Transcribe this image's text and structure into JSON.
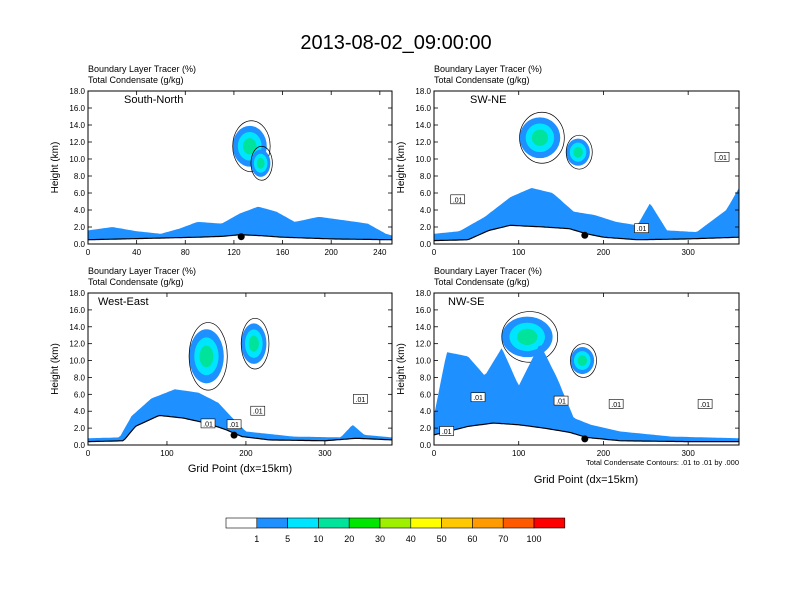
{
  "title": "2013-08-02_09:00:00",
  "tracer_label": "Boundary Layer Tracer    (%)",
  "condensate_label": "Total Condensate    (g/kg)",
  "ylabel": "Height (km)",
  "xlabel": "Grid Point (dx=15km)",
  "contour_note": "Total Condensate Contours: .01 to .01 by .000",
  "colorbar": {
    "colors": [
      "#ffffff",
      "#1e90ff",
      "#00e5ff",
      "#00e39a",
      "#00e600",
      "#9ef000",
      "#ffff00",
      "#ffc800",
      "#ff9a00",
      "#ff5a00",
      "#ff0000"
    ],
    "labels": [
      "1",
      "5",
      "10",
      "20",
      "30",
      "40",
      "50",
      "60",
      "70",
      "100"
    ]
  },
  "chart_data": [
    {
      "type": "heatmap",
      "name": "South-North",
      "xlim": [
        0,
        250
      ],
      "ylim": [
        0,
        18
      ],
      "xticks": [
        0,
        40,
        80,
        120,
        160,
        200,
        240
      ],
      "yticks": [
        0.0,
        2.0,
        4.0,
        6.0,
        8.0,
        10.0,
        12.0,
        14.0,
        16.0,
        18.0
      ],
      "terrain": [
        [
          0,
          0.5
        ],
        [
          30,
          0.6
        ],
        [
          60,
          0.7
        ],
        [
          90,
          0.8
        ],
        [
          110,
          0.9
        ],
        [
          125,
          1.1
        ],
        [
          140,
          1.0
        ],
        [
          160,
          0.8
        ],
        [
          200,
          0.6
        ],
        [
          250,
          0.5
        ]
      ],
      "tracer_top": [
        [
          0,
          1.6
        ],
        [
          20,
          2.0
        ],
        [
          40,
          1.5
        ],
        [
          60,
          1.2
        ],
        [
          75,
          1.8
        ],
        [
          90,
          2.6
        ],
        [
          110,
          2.4
        ],
        [
          125,
          3.6
        ],
        [
          140,
          4.4
        ],
        [
          155,
          3.8
        ],
        [
          170,
          2.6
        ],
        [
          190,
          3.2
        ],
        [
          210,
          2.8
        ],
        [
          230,
          2.4
        ],
        [
          245,
          1.2
        ],
        [
          250,
          1.0
        ]
      ],
      "clouds": [
        [
          133,
          11.5,
          14,
          2.4
        ],
        [
          142,
          9.5,
          8,
          1.6
        ]
      ],
      "contour_labels": [],
      "marker_x": 126
    },
    {
      "type": "heatmap",
      "name": "SW-NE",
      "xlim": [
        0,
        360
      ],
      "ylim": [
        0,
        18
      ],
      "xticks": [
        0,
        100,
        200,
        300
      ],
      "yticks": [
        0.0,
        2.0,
        4.0,
        6.0,
        8.0,
        10.0,
        12.0,
        14.0,
        16.0,
        18.0
      ],
      "terrain": [
        [
          0,
          0.4
        ],
        [
          40,
          0.5
        ],
        [
          65,
          1.6
        ],
        [
          90,
          2.2
        ],
        [
          130,
          2.0
        ],
        [
          160,
          1.8
        ],
        [
          180,
          1.2
        ],
        [
          200,
          0.8
        ],
        [
          240,
          0.5
        ],
        [
          300,
          0.6
        ],
        [
          360,
          0.8
        ]
      ],
      "tracer_top": [
        [
          0,
          1.2
        ],
        [
          30,
          1.5
        ],
        [
          60,
          3.2
        ],
        [
          90,
          5.5
        ],
        [
          115,
          6.6
        ],
        [
          140,
          6.0
        ],
        [
          165,
          3.8
        ],
        [
          190,
          3.4
        ],
        [
          215,
          2.6
        ],
        [
          240,
          2.2
        ],
        [
          255,
          4.8
        ],
        [
          275,
          1.6
        ],
        [
          310,
          1.4
        ],
        [
          345,
          4.0
        ],
        [
          360,
          6.6
        ]
      ],
      "clouds": [
        [
          125,
          12.5,
          24,
          2.4
        ],
        [
          170,
          10.8,
          14,
          1.6
        ]
      ],
      "contour_labels": [
        {
          "x": 28,
          "y": 5.2,
          "t": ".01"
        },
        {
          "x": 245,
          "y": 1.8,
          "t": ".01"
        },
        {
          "x": 340,
          "y": 10.2,
          "t": ".01"
        }
      ],
      "marker_x": 178
    },
    {
      "type": "heatmap",
      "name": "West-East",
      "xlim": [
        0,
        385
      ],
      "ylim": [
        0,
        18
      ],
      "xticks": [
        0,
        100,
        200,
        300
      ],
      "yticks": [
        0.0,
        2.0,
        4.0,
        6.0,
        8.0,
        10.0,
        12.0,
        14.0,
        16.0,
        18.0
      ],
      "terrain": [
        [
          0,
          0.4
        ],
        [
          45,
          0.5
        ],
        [
          60,
          2.2
        ],
        [
          90,
          3.5
        ],
        [
          120,
          3.2
        ],
        [
          150,
          2.6
        ],
        [
          175,
          1.8
        ],
        [
          195,
          1.0
        ],
        [
          230,
          0.6
        ],
        [
          300,
          0.5
        ],
        [
          340,
          0.8
        ],
        [
          385,
          0.6
        ]
      ],
      "tracer_top": [
        [
          0,
          0.8
        ],
        [
          40,
          0.9
        ],
        [
          55,
          3.4
        ],
        [
          80,
          5.5
        ],
        [
          110,
          6.6
        ],
        [
          140,
          6.2
        ],
        [
          165,
          5.0
        ],
        [
          185,
          3.0
        ],
        [
          200,
          1.6
        ],
        [
          260,
          1.0
        ],
        [
          320,
          0.9
        ],
        [
          335,
          2.4
        ],
        [
          350,
          1.2
        ],
        [
          385,
          0.9
        ]
      ],
      "clouds": [
        [
          150,
          10.5,
          22,
          3.2
        ],
        [
          210,
          12.0,
          16,
          2.4
        ]
      ],
      "contour_labels": [
        {
          "x": 152,
          "y": 2.5,
          "t": ".01"
        },
        {
          "x": 185,
          "y": 2.4,
          "t": ".01"
        },
        {
          "x": 215,
          "y": 4.0,
          "t": ".01"
        },
        {
          "x": 345,
          "y": 5.4,
          "t": ".01"
        }
      ],
      "marker_x": 185
    },
    {
      "type": "heatmap",
      "name": "NW-SE",
      "xlim": [
        0,
        360
      ],
      "ylim": [
        0,
        18
      ],
      "xticks": [
        0,
        100,
        200,
        300
      ],
      "yticks": [
        0.0,
        2.0,
        4.0,
        6.0,
        8.0,
        10.0,
        12.0,
        14.0,
        16.0,
        18.0
      ],
      "terrain": [
        [
          0,
          1.2
        ],
        [
          40,
          2.2
        ],
        [
          70,
          2.6
        ],
        [
          100,
          2.4
        ],
        [
          130,
          2.0
        ],
        [
          160,
          1.5
        ],
        [
          180,
          0.9
        ],
        [
          220,
          0.5
        ],
        [
          300,
          0.4
        ],
        [
          360,
          0.4
        ]
      ],
      "tracer_top": [
        [
          0,
          3.5
        ],
        [
          15,
          11.0
        ],
        [
          40,
          10.5
        ],
        [
          60,
          8.2
        ],
        [
          80,
          11.5
        ],
        [
          100,
          7.0
        ],
        [
          125,
          12.0
        ],
        [
          145,
          8.0
        ],
        [
          165,
          3.2
        ],
        [
          185,
          2.4
        ],
        [
          220,
          1.6
        ],
        [
          280,
          1.0
        ],
        [
          360,
          0.8
        ]
      ],
      "clouds": [
        [
          110,
          12.8,
          30,
          2.4
        ],
        [
          175,
          10.0,
          14,
          1.6
        ]
      ],
      "contour_labels": [
        {
          "x": 15,
          "y": 1.6,
          "t": ".01"
        },
        {
          "x": 52,
          "y": 5.6,
          "t": ".01"
        },
        {
          "x": 150,
          "y": 5.2,
          "t": ".01"
        },
        {
          "x": 215,
          "y": 4.8,
          "t": ".01"
        },
        {
          "x": 320,
          "y": 4.8,
          "t": ".01"
        }
      ],
      "marker_x": 178
    }
  ]
}
